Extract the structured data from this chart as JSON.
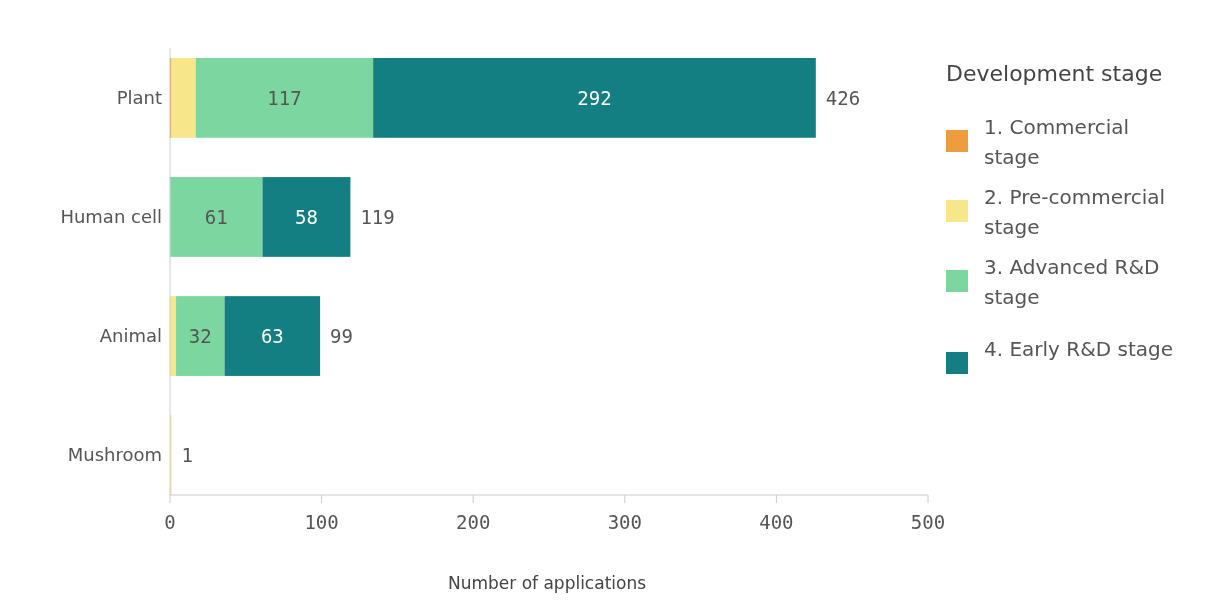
{
  "chart_data": {
    "type": "bar",
    "orientation": "horizontal",
    "stacked": true,
    "xlabel": "Number of applications",
    "legend_title": "Development stage",
    "legend": "right",
    "grid": false,
    "categories": [
      "Plant",
      "Human cell",
      "Animal",
      "Mushroom"
    ],
    "xlim": [
      0,
      500
    ],
    "xticks": [
      0,
      100,
      200,
      300,
      400,
      500
    ],
    "series": [
      {
        "name": "1. Commercial stage",
        "color": "#ef9c3e",
        "values": [
          1,
          0,
          0,
          0
        ],
        "value_labels": [
          null,
          null,
          null,
          null
        ]
      },
      {
        "name": "2. Pre-commercial stage",
        "color": "#f7e68a",
        "values": [
          16,
          0,
          4,
          1
        ],
        "value_labels": [
          null,
          null,
          null,
          null
        ]
      },
      {
        "name": "3. Advanced R&D stage",
        "color": "#7bd6a0",
        "values": [
          117,
          61,
          32,
          0
        ],
        "value_labels": [
          "117",
          "61",
          "32",
          null
        ]
      },
      {
        "name": "4. Early R&D stage",
        "color": "#147f82",
        "values": [
          292,
          58,
          63,
          0
        ],
        "value_labels": [
          "292",
          "58",
          "63",
          null
        ]
      }
    ],
    "totals": [
      "426",
      "119",
      "99",
      "1"
    ]
  }
}
